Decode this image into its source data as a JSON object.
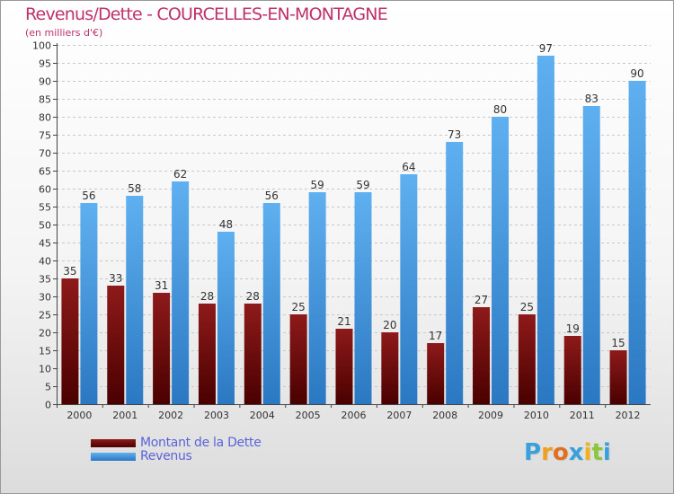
{
  "title": "Revenus/Dette - COURCELLES-EN-MONTAGNE",
  "subtitle": "(en milliers d'€)",
  "colors": {
    "title": "#c0306a",
    "dette": "#7a0a0a",
    "revenus": "#3f93dc",
    "legend_text": "#5a63d8"
  },
  "legend": {
    "items": [
      {
        "label": "Montant de la Dette"
      },
      {
        "label": "Revenus"
      }
    ]
  },
  "logo": {
    "letters": [
      "P",
      "r",
      "o",
      "x",
      "i",
      "t",
      "i"
    ]
  },
  "chart_data": {
    "type": "bar",
    "title": "Revenus/Dette - COURCELLES-EN-MONTAGNE",
    "subtitle": "(en milliers d'€)",
    "categories": [
      "2000",
      "2001",
      "2002",
      "2003",
      "2004",
      "2005",
      "2006",
      "2007",
      "2008",
      "2009",
      "2010",
      "2011",
      "2012"
    ],
    "series": [
      {
        "name": "Montant de la Dette",
        "color": "#7a0a0a",
        "values": [
          35,
          33,
          31,
          28,
          28,
          25,
          21,
          20,
          17,
          27,
          25,
          19,
          15
        ]
      },
      {
        "name": "Revenus",
        "color": "#3f93dc",
        "values": [
          56,
          58,
          62,
          48,
          56,
          59,
          59,
          64,
          73,
          80,
          97,
          83,
          90
        ]
      }
    ],
    "ylim": [
      0,
      100
    ],
    "yticks": [
      0,
      5,
      10,
      15,
      20,
      25,
      30,
      35,
      40,
      45,
      50,
      55,
      60,
      65,
      70,
      75,
      80,
      85,
      90,
      95,
      100
    ],
    "grid": true,
    "legend_position": "bottom-left"
  }
}
